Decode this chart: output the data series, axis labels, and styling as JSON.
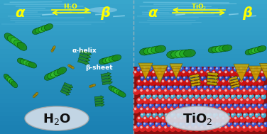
{
  "left_alpha": "α",
  "left_beta": "β",
  "right_alpha": "α",
  "right_beta": "β",
  "annotation_helix": "α-helix",
  "annotation_sheet": "β-sheet",
  "text_color": "#ffff00",
  "water_color_top": "#1a7aad",
  "water_color_mid": "#1e90c0",
  "water_color_bot": "#28aad8",
  "surface_red": "#cc2020",
  "surface_blue": "#3355dd",
  "surface_cyan": "#44aacc",
  "surface_white": "#dddddd",
  "divider_color": "#bbbbbb",
  "oval_bg": "#d0dce8",
  "oval_border": "#999999",
  "green_dark": "#1a7a1a",
  "green_mid": "#22aa22",
  "green_light": "#44cc44",
  "yellow_dark": "#886600",
  "yellow_mid": "#ccaa00",
  "yellow_bright": "#eedd00",
  "figsize": [
    3.76,
    1.89
  ],
  "dpi": 100
}
